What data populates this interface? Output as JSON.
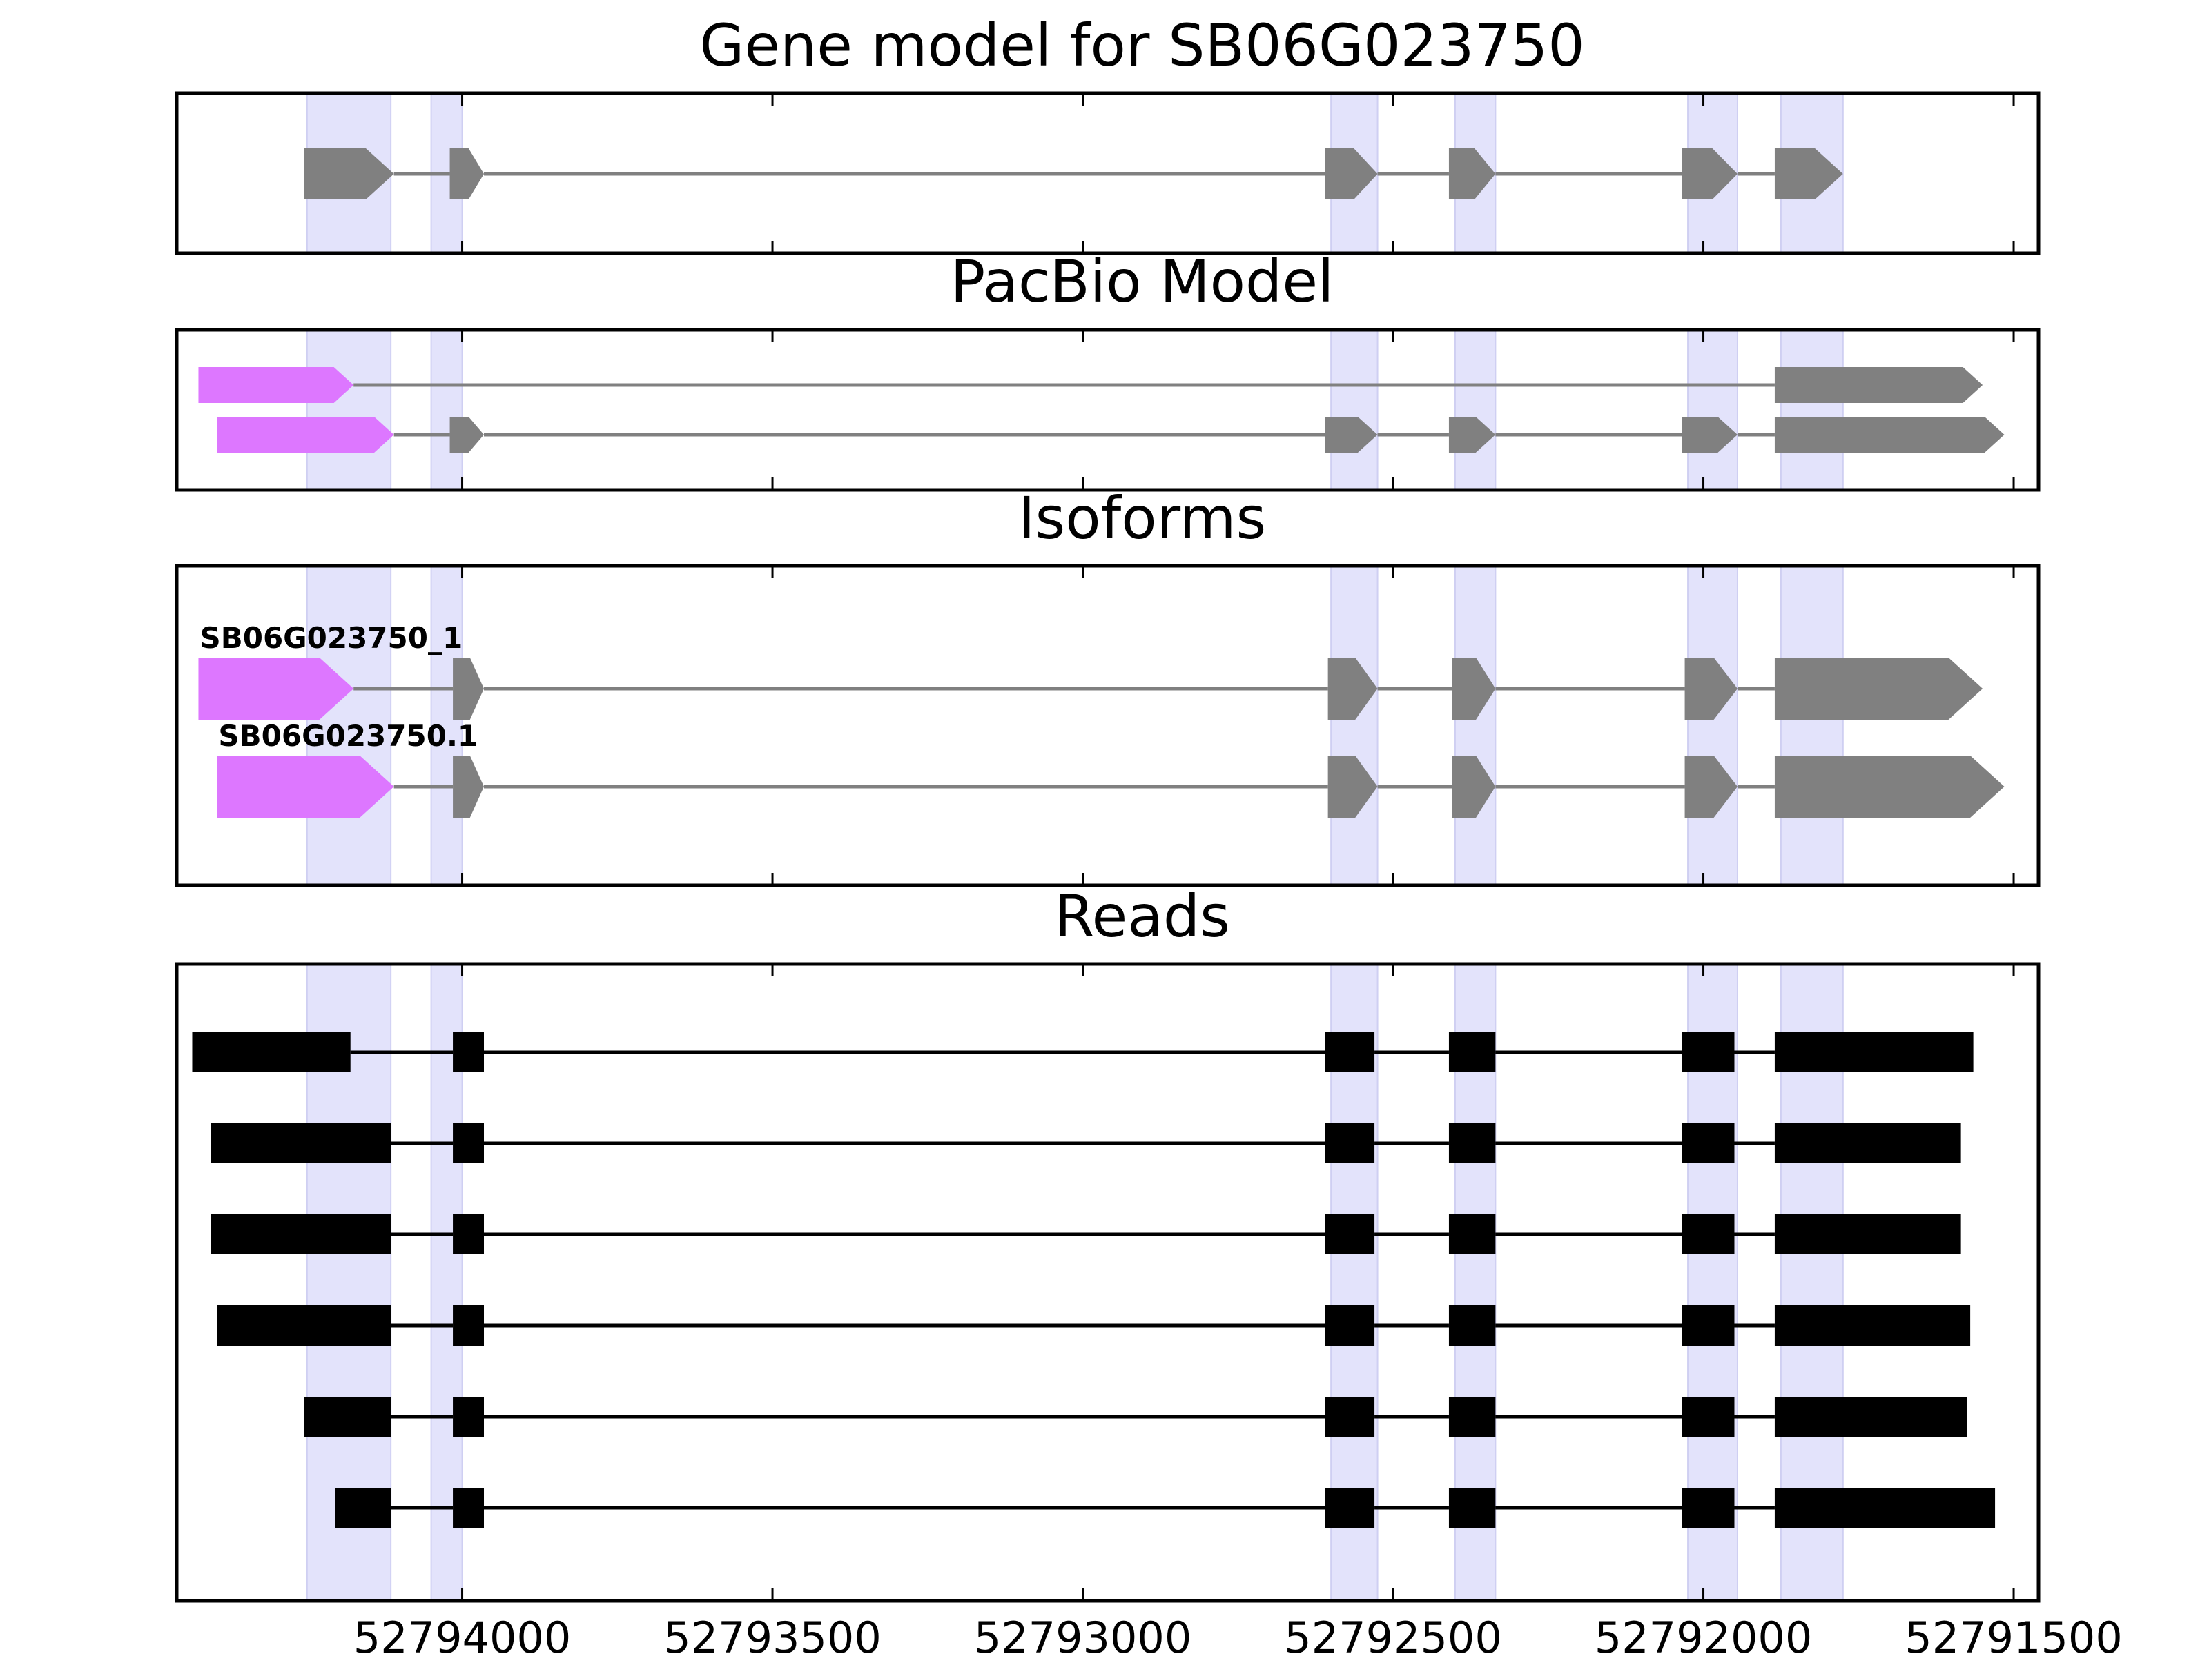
{
  "chart_data": {
    "type": "gene_track",
    "x_direction": "reversed",
    "xlim": [
      52794460,
      52791460
    ],
    "xticks": [
      52794000,
      52793500,
      52793000,
      52792500,
      52792000,
      52791500
    ],
    "xtick_labels": [
      "52794000",
      "52793500",
      "52793000",
      "52792500",
      "52792000",
      "52791500"
    ],
    "highlight_regions": [
      [
        52794250,
        52794115
      ],
      [
        52794050,
        52794000
      ],
      [
        52792600,
        52792525
      ],
      [
        52792400,
        52792335
      ],
      [
        52792025,
        52791945
      ],
      [
        52791875,
        52791775
      ]
    ],
    "colors": {
      "highlight": "#e3e3fb",
      "exon": "#808080",
      "utr_mismatch": "#dd77ff",
      "read": "#000000",
      "frame": "#000000"
    },
    "panels": [
      {
        "title": "Gene model for SB06G023750",
        "tracks": [
          {
            "label": "",
            "exons": [
              {
                "start": 52794255,
                "end": 52794110,
                "color": "#808080"
              },
              {
                "start": 52794020,
                "end": 52793965,
                "color": "#808080"
              },
              {
                "start": 52792610,
                "end": 52792525,
                "color": "#808080"
              },
              {
                "start": 52792410,
                "end": 52792335,
                "color": "#808080"
              },
              {
                "start": 52792035,
                "end": 52791945,
                "color": "#808080"
              },
              {
                "start": 52791885,
                "end": 52791775,
                "color": "#808080"
              }
            ]
          }
        ]
      },
      {
        "title": "PacBio Model",
        "tracks": [
          {
            "label": "",
            "exons": [
              {
                "start": 52794425,
                "end": 52794175,
                "color": "#dd77ff"
              },
              {
                "start": 52791885,
                "end": 52791550,
                "color": "#808080"
              }
            ]
          },
          {
            "label": "",
            "exons": [
              {
                "start": 52794395,
                "end": 52794110,
                "color": "#dd77ff"
              },
              {
                "start": 52794020,
                "end": 52793965,
                "color": "#808080"
              },
              {
                "start": 52792610,
                "end": 52792525,
                "color": "#808080"
              },
              {
                "start": 52792410,
                "end": 52792335,
                "color": "#808080"
              },
              {
                "start": 52792035,
                "end": 52791945,
                "color": "#808080"
              },
              {
                "start": 52791885,
                "end": 52791515,
                "color": "#808080"
              }
            ]
          }
        ]
      },
      {
        "title": "Isoforms",
        "tracks": [
          {
            "label": "SB06G023750_1",
            "exons": [
              {
                "start": 52794425,
                "end": 52794175,
                "color": "#dd77ff"
              },
              {
                "start": 52794015,
                "end": 52793965,
                "color": "#808080"
              },
              {
                "start": 52792605,
                "end": 52792525,
                "color": "#808080"
              },
              {
                "start": 52792405,
                "end": 52792335,
                "color": "#808080"
              },
              {
                "start": 52792030,
                "end": 52791945,
                "color": "#808080"
              },
              {
                "start": 52791885,
                "end": 52791550,
                "color": "#808080"
              }
            ]
          },
          {
            "label": "SB06G023750.1",
            "exons": [
              {
                "start": 52794395,
                "end": 52794110,
                "color": "#dd77ff"
              },
              {
                "start": 52794015,
                "end": 52793965,
                "color": "#808080"
              },
              {
                "start": 52792605,
                "end": 52792525,
                "color": "#808080"
              },
              {
                "start": 52792405,
                "end": 52792335,
                "color": "#808080"
              },
              {
                "start": 52792030,
                "end": 52791945,
                "color": "#808080"
              },
              {
                "start": 52791885,
                "end": 52791515,
                "color": "#808080"
              }
            ]
          }
        ]
      },
      {
        "title": "Reads",
        "reads": [
          {
            "exons": [
              [
                52794435,
                52794180
              ],
              [
                52794015,
                52793965
              ],
              [
                52792610,
                52792530
              ],
              [
                52792410,
                52792335
              ],
              [
                52792035,
                52791950
              ],
              [
                52791885,
                52791565
              ]
            ]
          },
          {
            "exons": [
              [
                52794405,
                52794115
              ],
              [
                52794015,
                52793965
              ],
              [
                52792610,
                52792530
              ],
              [
                52792410,
                52792335
              ],
              [
                52792035,
                52791950
              ],
              [
                52791885,
                52791585
              ]
            ]
          },
          {
            "exons": [
              [
                52794405,
                52794115
              ],
              [
                52794015,
                52793965
              ],
              [
                52792610,
                52792530
              ],
              [
                52792410,
                52792335
              ],
              [
                52792035,
                52791950
              ],
              [
                52791885,
                52791585
              ]
            ]
          },
          {
            "exons": [
              [
                52794395,
                52794115
              ],
              [
                52794015,
                52793965
              ],
              [
                52792610,
                52792530
              ],
              [
                52792410,
                52792335
              ],
              [
                52792035,
                52791950
              ],
              [
                52791885,
                52791570
              ]
            ]
          },
          {
            "exons": [
              [
                52794255,
                52794115
              ],
              [
                52794015,
                52793965
              ],
              [
                52792610,
                52792530
              ],
              [
                52792410,
                52792335
              ],
              [
                52792035,
                52791950
              ],
              [
                52791885,
                52791575
              ]
            ]
          },
          {
            "exons": [
              [
                52794205,
                52794115
              ],
              [
                52794015,
                52793965
              ],
              [
                52792610,
                52792530
              ],
              [
                52792410,
                52792335
              ],
              [
                52792035,
                52791950
              ],
              [
                52791885,
                52791530
              ]
            ]
          }
        ]
      }
    ]
  }
}
